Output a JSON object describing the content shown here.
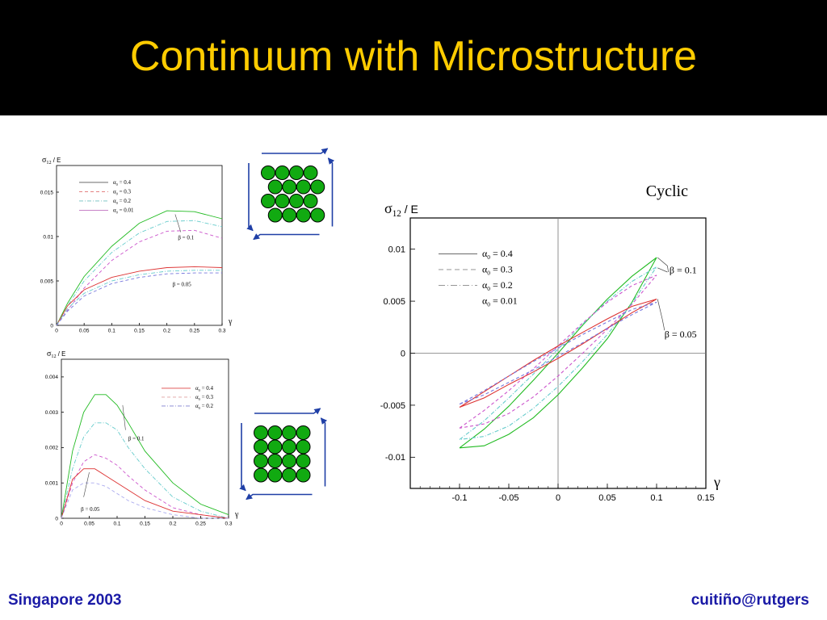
{
  "slide": {
    "title": "Continuum with Microstructure",
    "footer_left": "Singapore 2003",
    "footer_right": "cuitiño@rutgers",
    "colors": {
      "title": "#ffcc00",
      "footer": "#1a1aa6",
      "background_top": "#000000",
      "particles": "#11aa11",
      "arrows": "#1f3fa6"
    }
  },
  "chart_data": [
    {
      "id": "monotonic-top",
      "type": "line",
      "ylabel_sym": "σ",
      "ylabel_sub": "12",
      "ylabel_rest": "/ E",
      "xlabel": "γ",
      "xlim": [
        0,
        0.3
      ],
      "ylim": [
        0,
        0.018
      ],
      "xticks": [
        "0",
        "0.05",
        "0.1",
        "0.15",
        "0.2",
        "0.25",
        "0.3"
      ],
      "xtick_values": [
        0,
        0.05,
        0.1,
        0.15,
        0.2,
        0.25,
        0.3
      ],
      "yticks": [
        "0",
        "0.005",
        "0.01",
        "0.015"
      ],
      "ytick_values": [
        0,
        0.005,
        0.01,
        0.015
      ],
      "legend": [
        {
          "sym": "α",
          "sub": "0",
          "eq": "= 0.4",
          "color": "#555555",
          "dash": ""
        },
        {
          "sym": "α",
          "sub": "0",
          "eq": "= 0.3",
          "color": "#e07070",
          "dash": "4,3"
        },
        {
          "sym": "α",
          "sub": "0",
          "eq": "= 0.2",
          "color": "#70c0c0",
          "dash": "5,2,1,2"
        },
        {
          "sym": "α",
          "sub": "0",
          "eq": "= 0.01",
          "color": "#c070c0",
          "dash": ""
        }
      ],
      "annotations": [
        {
          "text": "β = 0.1",
          "x": 0.22,
          "y": 0.0097,
          "leader": [
            [
              0.215,
              0.0125
            ],
            [
              0.225,
              0.0105
            ]
          ]
        },
        {
          "text": "β = 0.05",
          "x": 0.21,
          "y": 0.0044
        }
      ],
      "series": [
        {
          "color": "#22bb22",
          "dash": "",
          "x": [
            0,
            0.02,
            0.05,
            0.1,
            0.15,
            0.2,
            0.25,
            0.3
          ],
          "y": [
            0,
            0.0025,
            0.0055,
            0.0089,
            0.0115,
            0.0129,
            0.0128,
            0.012
          ]
        },
        {
          "color": "#66cccc",
          "dash": "5,2,1,2",
          "x": [
            0,
            0.02,
            0.05,
            0.1,
            0.15,
            0.2,
            0.25,
            0.3
          ],
          "y": [
            0,
            0.0022,
            0.005,
            0.0082,
            0.0104,
            0.0117,
            0.0118,
            0.0111
          ]
        },
        {
          "color": "#cc55cc",
          "dash": "4,3",
          "x": [
            0,
            0.02,
            0.05,
            0.1,
            0.15,
            0.2,
            0.25,
            0.3
          ],
          "y": [
            0,
            0.0017,
            0.0042,
            0.0073,
            0.0094,
            0.0106,
            0.0107,
            0.0098
          ]
        },
        {
          "color": "#dd3333",
          "dash": "",
          "x": [
            0,
            0.02,
            0.05,
            0.1,
            0.15,
            0.2,
            0.25,
            0.3
          ],
          "y": [
            0,
            0.0022,
            0.004,
            0.0054,
            0.0061,
            0.0065,
            0.0066,
            0.0065
          ]
        },
        {
          "color": "#66cccc",
          "dash": "5,2,1,2",
          "x": [
            0,
            0.02,
            0.05,
            0.1,
            0.15,
            0.2,
            0.25,
            0.3
          ],
          "y": [
            0,
            0.0019,
            0.0036,
            0.005,
            0.0057,
            0.0061,
            0.0062,
            0.0062
          ]
        },
        {
          "color": "#7777dd",
          "dash": "4,3",
          "x": [
            0,
            0.02,
            0.05,
            0.1,
            0.15,
            0.2,
            0.25,
            0.3
          ],
          "y": [
            0,
            0.0016,
            0.0033,
            0.0047,
            0.0054,
            0.0058,
            0.0059,
            0.0059
          ]
        }
      ]
    },
    {
      "id": "monotonic-bottom",
      "type": "line",
      "ylabel_sym": "σ",
      "ylabel_sub": "12",
      "ylabel_rest": "/ E",
      "xlabel": "γ",
      "xlim": [
        0,
        0.3
      ],
      "ylim": [
        0,
        0.0045
      ],
      "xticks": [
        "0",
        "0.05",
        "0.1",
        "0.15",
        "0.2",
        "0.25",
        "0.3"
      ],
      "xtick_values": [
        0,
        0.05,
        0.1,
        0.15,
        0.2,
        0.25,
        0.3
      ],
      "yticks": [
        "0",
        "0.001",
        "0.002",
        "0.003",
        "0.004"
      ],
      "ytick_values": [
        0,
        0.001,
        0.002,
        0.003,
        0.004
      ],
      "legend": [
        {
          "sym": "α",
          "sub": "0",
          "eq": "= 0.4",
          "color": "#dd4444",
          "dash": ""
        },
        {
          "sym": "α",
          "sub": "0",
          "eq": "= 0.3",
          "color": "#e0a0a0",
          "dash": "4,3"
        },
        {
          "sym": "α",
          "sub": "0",
          "eq": "= 0.2",
          "color": "#8080d0",
          "dash": "5,2,1,2"
        }
      ],
      "annotations": [
        {
          "text": "β = 0.1",
          "x": 0.12,
          "y": 0.0022,
          "leader": [
            [
              0.11,
              0.0032
            ],
            [
              0.115,
              0.0025
            ]
          ]
        },
        {
          "text": "β = 0.05",
          "x": 0.035,
          "y": 0.0002,
          "leader": [
            [
              0.05,
              0.0013
            ],
            [
              0.04,
              0.0006
            ]
          ]
        }
      ],
      "series": [
        {
          "color": "#22bb22",
          "dash": "",
          "x": [
            0,
            0.02,
            0.04,
            0.06,
            0.08,
            0.1,
            0.12,
            0.15,
            0.2,
            0.25,
            0.3
          ],
          "y": [
            0,
            0.0019,
            0.003,
            0.0035,
            0.0035,
            0.0032,
            0.0027,
            0.0019,
            0.001,
            0.0004,
            0.0001
          ]
        },
        {
          "color": "#66cccc",
          "dash": "5,2,1,2",
          "x": [
            0,
            0.02,
            0.04,
            0.06,
            0.08,
            0.1,
            0.12,
            0.15,
            0.2,
            0.25,
            0.3
          ],
          "y": [
            0,
            0.0014,
            0.0023,
            0.0027,
            0.0027,
            0.0025,
            0.002,
            0.0014,
            0.0006,
            0.0002,
            0
          ]
        },
        {
          "color": "#cc55cc",
          "dash": "4,3",
          "x": [
            0,
            0.02,
            0.04,
            0.06,
            0.08,
            0.1,
            0.12,
            0.15,
            0.2,
            0.25,
            0.3
          ],
          "y": [
            0,
            0.001,
            0.0016,
            0.0018,
            0.0017,
            0.0015,
            0.0012,
            0.0008,
            0.0003,
            0.0001,
            0
          ]
        },
        {
          "color": "#dd3333",
          "dash": "",
          "x": [
            0,
            0.02,
            0.04,
            0.06,
            0.08,
            0.1,
            0.12,
            0.15,
            0.2,
            0.25,
            0.3
          ],
          "y": [
            0,
            0.0011,
            0.0014,
            0.0014,
            0.0012,
            0.001,
            0.0008,
            0.0005,
            0.0002,
            0.0001,
            0
          ]
        },
        {
          "color": "#aaaaee",
          "dash": "4,3",
          "x": [
            0,
            0.02,
            0.04,
            0.06,
            0.08,
            0.1,
            0.12,
            0.15,
            0.2,
            0.25,
            0.3
          ],
          "y": [
            0,
            0.0008,
            0.001,
            0.001,
            0.0009,
            0.0007,
            0.0005,
            0.0003,
            0.0001,
            0,
            0
          ]
        }
      ]
    },
    {
      "id": "cyclic",
      "type": "line",
      "title": "Cyclic",
      "ylabel_sym": "σ",
      "ylabel_sub": "12",
      "ylabel_rest": "/ E",
      "xlabel": "γ",
      "xlim": [
        -0.15,
        0.15
      ],
      "ylim": [
        -0.013,
        0.013
      ],
      "grid_zero_lines": true,
      "xticks": [
        "-0.1",
        "-0.05",
        "0",
        "0.05",
        "0.1",
        "0.15"
      ],
      "xtick_values": [
        -0.1,
        -0.05,
        0,
        0.05,
        0.1,
        0.15
      ],
      "yticks": [
        "-0.01",
        "-0.005",
        "0",
        "0.005",
        "0.01"
      ],
      "ytick_values": [
        -0.01,
        -0.005,
        0,
        0.005,
        0.01
      ],
      "legend": [
        {
          "sym": "α",
          "sub": "0",
          "eq": "= 0.4",
          "color": "#555555",
          "dash": ""
        },
        {
          "sym": "α",
          "sub": "0",
          "eq": "= 0.3",
          "color": "#888888",
          "dash": "6,4"
        },
        {
          "sym": "α",
          "sub": "0",
          "eq": "= 0.2",
          "color": "#888888",
          "dash": "8,3,1,3"
        },
        {
          "sym": "α",
          "sub": "0",
          "eq": "= 0.01",
          "color": "#ffffff",
          "dash": ""
        }
      ],
      "annotations": [
        {
          "text": "β = 0.1",
          "x": 0.113,
          "y": 0.0077
        },
        {
          "text": "β = 0.05",
          "x": 0.108,
          "y": 0.0015
        }
      ],
      "series": [
        {
          "color": "#22bb22",
          "dash": "",
          "x": [
            -0.1,
            -0.075,
            -0.05,
            -0.025,
            0,
            0.025,
            0.05,
            0.075,
            0.1,
            0.075,
            0.05,
            0.025,
            0,
            -0.025,
            -0.05,
            -0.075,
            -0.1
          ],
          "y": [
            -0.0091,
            -0.0073,
            -0.0051,
            -0.0026,
            0,
            0.0027,
            0.0052,
            0.0074,
            0.0092,
            0.0049,
            0.0014,
            -0.0014,
            -0.004,
            -0.0062,
            -0.0078,
            -0.0089,
            -0.0091
          ]
        },
        {
          "color": "#66cccc",
          "dash": "5,2,1,2",
          "x": [
            -0.1,
            -0.075,
            -0.05,
            -0.025,
            0,
            0.025,
            0.05,
            0.075,
            0.1,
            0.075,
            0.05,
            0.025,
            0,
            -0.025,
            -0.05,
            -0.075,
            -0.1
          ],
          "y": [
            -0.0083,
            -0.0065,
            -0.0043,
            -0.002,
            0.0004,
            0.0028,
            0.005,
            0.0069,
            0.0083,
            0.0048,
            0.0018,
            -0.0008,
            -0.0032,
            -0.0053,
            -0.007,
            -0.008,
            -0.0083
          ]
        },
        {
          "color": "#cc55cc",
          "dash": "4,3",
          "x": [
            -0.1,
            -0.075,
            -0.05,
            -0.025,
            0,
            0.025,
            0.05,
            0.075,
            0.1,
            0.075,
            0.05,
            0.025,
            0,
            -0.025,
            -0.05,
            -0.075,
            -0.1
          ],
          "y": [
            -0.0072,
            -0.0055,
            -0.0036,
            -0.0015,
            0.0007,
            0.0029,
            0.0049,
            0.0065,
            0.0075,
            0.0047,
            0.0023,
            0,
            -0.0022,
            -0.0042,
            -0.0058,
            -0.0068,
            -0.0072
          ]
        },
        {
          "color": "#dd3333",
          "dash": "",
          "x": [
            -0.1,
            -0.075,
            -0.05,
            -0.025,
            0,
            0.025,
            0.05,
            0.075,
            0.1,
            0.075,
            0.05,
            0.025,
            0,
            -0.025,
            -0.05,
            -0.075,
            -0.1
          ],
          "y": [
            -0.0052,
            -0.0043,
            -0.003,
            -0.0018,
            -0.0005,
            0.0009,
            0.0024,
            0.0039,
            0.0052,
            0.0045,
            0.0033,
            0.002,
            0.0007,
            -0.0007,
            -0.0022,
            -0.0037,
            -0.0052
          ]
        },
        {
          "color": "#7777dd",
          "dash": "4,3",
          "x": [
            -0.1,
            -0.075,
            -0.05,
            -0.025,
            0,
            0.025,
            0.05,
            0.075,
            0.1,
            0.075,
            0.05,
            0.025,
            0,
            -0.025,
            -0.05,
            -0.075,
            -0.1
          ],
          "y": [
            -0.0049,
            -0.004,
            -0.0028,
            -0.0016,
            -0.0003,
            0.001,
            0.0024,
            0.0037,
            0.0049,
            0.0042,
            0.003,
            0.0018,
            0.0005,
            -0.0008,
            -0.0022,
            -0.0036,
            -0.0049
          ]
        }
      ]
    }
  ]
}
